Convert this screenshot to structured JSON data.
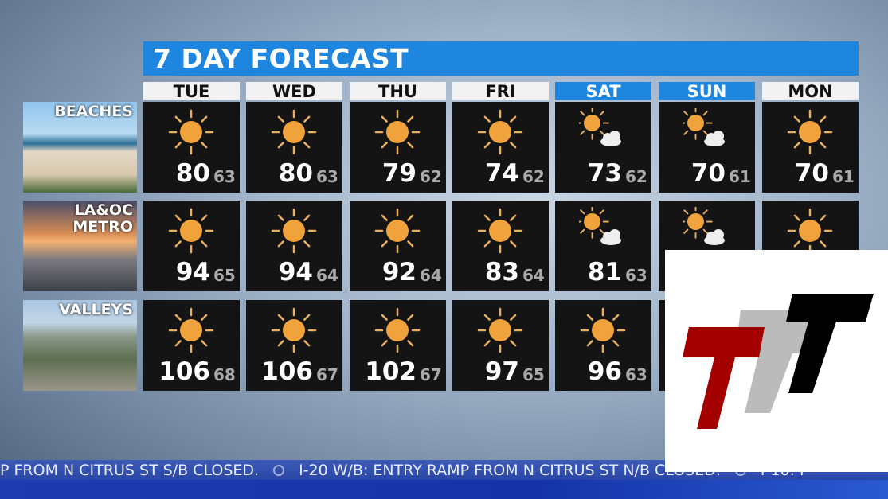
{
  "title": "7 DAY FORECAST",
  "days": [
    {
      "label": "TUE",
      "weekend": false
    },
    {
      "label": "WED",
      "weekend": false
    },
    {
      "label": "THU",
      "weekend": false
    },
    {
      "label": "FRI",
      "weekend": false
    },
    {
      "label": "SAT",
      "weekend": true
    },
    {
      "label": "SUN",
      "weekend": true
    },
    {
      "label": "MON",
      "weekend": false
    }
  ],
  "regions": [
    {
      "label": "BEACHES",
      "cells": [
        {
          "icon": "sunny",
          "hi": "80",
          "lo": "63"
        },
        {
          "icon": "sunny",
          "hi": "80",
          "lo": "63"
        },
        {
          "icon": "sunny",
          "hi": "79",
          "lo": "62"
        },
        {
          "icon": "sunny",
          "hi": "74",
          "lo": "62"
        },
        {
          "icon": "partly-cloudy",
          "hi": "73",
          "lo": "62"
        },
        {
          "icon": "partly-cloudy",
          "hi": "70",
          "lo": "61"
        },
        {
          "icon": "sunny",
          "hi": "70",
          "lo": "61"
        }
      ]
    },
    {
      "label": "LA&OC METRO",
      "cells": [
        {
          "icon": "sunny",
          "hi": "94",
          "lo": "65"
        },
        {
          "icon": "sunny",
          "hi": "94",
          "lo": "64"
        },
        {
          "icon": "sunny",
          "hi": "92",
          "lo": "64"
        },
        {
          "icon": "sunny",
          "hi": "83",
          "lo": "64"
        },
        {
          "icon": "partly-cloudy",
          "hi": "81",
          "lo": "63"
        },
        {
          "icon": "partly-cloudy"
        },
        {
          "icon": "sunny"
        }
      ]
    },
    {
      "label": "VALLEYS",
      "cells": [
        {
          "icon": "sunny",
          "hi": "106",
          "lo": "68"
        },
        {
          "icon": "sunny",
          "hi": "106",
          "lo": "67"
        },
        {
          "icon": "sunny",
          "hi": "102",
          "lo": "67"
        },
        {
          "icon": "sunny",
          "hi": "97",
          "lo": "65"
        },
        {
          "icon": "sunny",
          "hi": "96",
          "lo": "63"
        },
        {},
        {}
      ]
    }
  ],
  "ticker": {
    "segments": [
      "P FROM N CITRUS ST S/B CLOSED.",
      "I-20 W/B: ENTRY RAMP FROM N CITRUS ST N/B CLOSED.",
      "I-10: I"
    ]
  },
  "logo": {
    "text": "TTT",
    "colors": [
      "#a50000",
      "#bbbbbb",
      "#000000"
    ]
  },
  "colors": {
    "accent": "#1f86e0",
    "sun": "#f0a23c",
    "tile": "#141414"
  }
}
